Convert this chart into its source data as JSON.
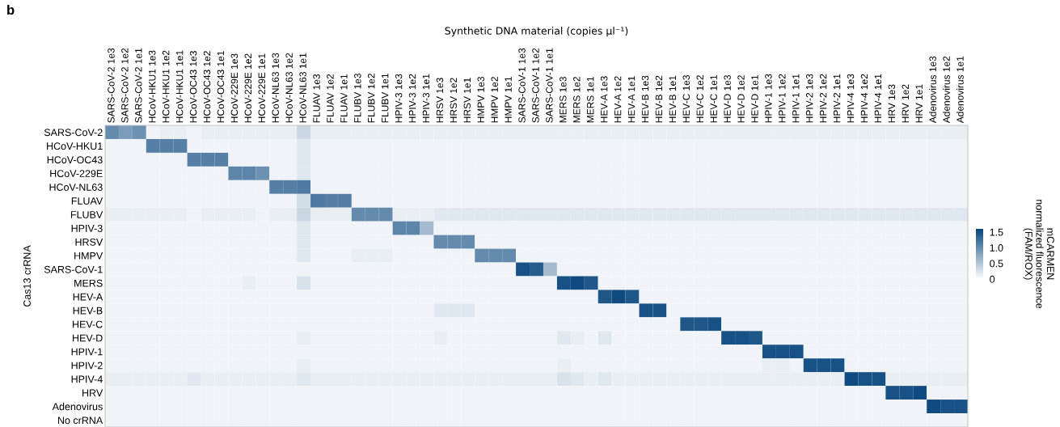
{
  "chart_data": {
    "type": "heatmap",
    "title": "b",
    "xlabel": "Synthetic DNA material (copies μl⁻¹)",
    "ylabel": "Cas13 crRNA",
    "clabel": "mCARMEN\nnormalized fluorescence\n(FAM/ROX)",
    "categories": [
      "SARS-CoV-2 1e3",
      "SARS-CoV-2 1e2",
      "SARS-CoV-2 1e1",
      "HCoV-HKU1 1e3",
      "HCoV-HKU1 1e2",
      "HCoV-HKU1 1e1",
      "HCoV-OC43 1e3",
      "HCoV-OC43 1e2",
      "HCoV-OC43 1e1",
      "HCoV-229E 1e3",
      "HCoV-229E 1e2",
      "HCoV-229E 1e1",
      "HCoV-NL63 1e3",
      "HCoV-NL63 1e2",
      "HCoV-NL63 1e1",
      "FLUAV 1e3",
      "FLUAV 1e2",
      "FLUAV 1e1",
      "FLUBV 1e3",
      "FLUBV 1e2",
      "FLUBV 1e1",
      "HPIV-3 1e3",
      "HPIV-3 1e2",
      "HPIV-3 1e1",
      "HRSV 1e3",
      "HRSV 1e2",
      "HRSV 1e1",
      "HMPV 1e3",
      "HMPV 1e2",
      "HMPV 1e1",
      "SARS-CoV-1 1e3",
      "SARS-CoV-1 1e2",
      "SARS-CoV-1 1e1",
      "MERS 1e3",
      "MERS 1e2",
      "MERS 1e1",
      "HEV-A 1e3",
      "HEV-A 1e2",
      "HEV-A 1e1",
      "HEV-B 1e3",
      "HEV-B 1e2",
      "HEV-B 1e1",
      "HEV-C 1e3",
      "HEV-C 1e2",
      "HEV-C 1e1",
      "HEV-D 1e3",
      "HEV-D 1e2",
      "HEV-D 1e1",
      "HPIV-1 1e3",
      "HPIV-1 1e2",
      "HPIV-1 1e1",
      "HPIV-2 1e3",
      "HPIV-2 1e2",
      "HPIV-2 1e1",
      "HPIV-4 1e3",
      "HPIV-4 1e2",
      "HPIV-4 1e1",
      "HRV 1e3",
      "HRV 1e2",
      "HRV 1e1",
      "Adenovirus 1e3",
      "Adenovirus 1e2",
      "Adenovirus 1e1"
    ],
    "y_categories": [
      "SARS-CoV-2",
      "HCoV-HKU1",
      "HCoV-OC43",
      "HCoV-229E",
      "HCoV-NL63",
      "FLUAV",
      "FLUBV",
      "HPIV-3",
      "HRSV",
      "HMPV",
      "SARS-CoV-1",
      "MERS",
      "HEV-A",
      "HEV-B",
      "HEV-C",
      "HEV-D",
      "HPIV-1",
      "HPIV-2",
      "HPIV-4",
      "HRV",
      "Adenovirus",
      "No crRNA"
    ],
    "cells": [
      [
        1.0,
        0.85,
        0.95,
        0.1,
        0.15,
        0.15,
        0.1,
        0.15,
        0.15,
        0.15,
        0.15,
        0.15,
        0.15,
        0.15,
        0.35,
        0.15,
        0.15,
        0.15,
        0.15,
        0.15,
        0.15,
        0.15,
        0.15,
        0.15,
        0.15,
        0.15,
        0.15,
        0.15,
        0.15,
        0.15,
        0.15,
        0.15,
        0.15,
        0.15,
        0.15,
        0.15,
        0.15,
        0.15,
        0.15,
        0.15,
        0.15,
        0.15,
        0.15,
        0.15,
        0.15,
        0.15,
        0.15,
        0.15,
        0.15,
        0.15,
        0.15,
        0.15,
        0.15,
        0.15,
        0.15,
        0.15,
        0.15,
        0.15,
        0.15,
        0.15,
        0.15,
        0.15,
        0.15
      ],
      [
        0.1,
        0.1,
        0.1,
        1.1,
        1.1,
        1.1,
        0.1,
        0.1,
        0.1,
        0.1,
        0.1,
        0.1,
        0.1,
        0.1,
        0.2,
        0.1,
        0.1,
        0.1,
        0.1,
        0.1,
        0.1,
        0.1,
        0.1,
        0.1,
        0.1,
        0.1,
        0.1,
        0.1,
        0.1,
        0.1,
        0.1,
        0.1,
        0.1,
        0.1,
        0.1,
        0.1,
        0.1,
        0.1,
        0.1,
        0.1,
        0.1,
        0.1,
        0.1,
        0.1,
        0.1,
        0.1,
        0.1,
        0.1,
        0.1,
        0.1,
        0.1,
        0.1,
        0.1,
        0.1,
        0.1,
        0.1,
        0.1,
        0.1,
        0.1,
        0.1,
        0.1,
        0.1,
        0.1
      ],
      [
        0.1,
        0.1,
        0.1,
        0.1,
        0.1,
        0.1,
        1.1,
        1.1,
        1.1,
        0.1,
        0.1,
        0.1,
        0.1,
        0.1,
        0.2,
        0.1,
        0.1,
        0.1,
        0.1,
        0.1,
        0.1,
        0.1,
        0.1,
        0.1,
        0.1,
        0.1,
        0.1,
        0.1,
        0.1,
        0.1,
        0.1,
        0.1,
        0.1,
        0.1,
        0.1,
        0.1,
        0.1,
        0.1,
        0.1,
        0.1,
        0.1,
        0.1,
        0.1,
        0.1,
        0.1,
        0.1,
        0.1,
        0.1,
        0.1,
        0.1,
        0.1,
        0.1,
        0.1,
        0.1,
        0.1,
        0.1,
        0.1,
        0.1,
        0.1,
        0.1,
        0.1,
        0.1,
        0.1
      ],
      [
        0.1,
        0.1,
        0.1,
        0.1,
        0.1,
        0.1,
        0.1,
        0.1,
        0.1,
        1.05,
        1.05,
        0.95,
        0.1,
        0.1,
        0.2,
        0.1,
        0.1,
        0.1,
        0.1,
        0.1,
        0.1,
        0.1,
        0.1,
        0.1,
        0.1,
        0.1,
        0.1,
        0.1,
        0.1,
        0.1,
        0.1,
        0.1,
        0.1,
        0.1,
        0.1,
        0.1,
        0.1,
        0.1,
        0.1,
        0.1,
        0.1,
        0.1,
        0.1,
        0.1,
        0.1,
        0.1,
        0.1,
        0.1,
        0.1,
        0.1,
        0.1,
        0.1,
        0.1,
        0.1,
        0.1,
        0.1,
        0.1,
        0.1,
        0.1,
        0.1,
        0.1,
        0.1,
        0.1
      ],
      [
        0.1,
        0.1,
        0.1,
        0.1,
        0.1,
        0.1,
        0.1,
        0.1,
        0.1,
        0.1,
        0.1,
        0.1,
        1.1,
        1.1,
        1.15,
        0.1,
        0.1,
        0.1,
        0.1,
        0.1,
        0.1,
        0.1,
        0.1,
        0.1,
        0.1,
        0.1,
        0.1,
        0.1,
        0.1,
        0.1,
        0.1,
        0.1,
        0.1,
        0.1,
        0.1,
        0.1,
        0.1,
        0.1,
        0.1,
        0.1,
        0.1,
        0.1,
        0.1,
        0.1,
        0.1,
        0.1,
        0.1,
        0.1,
        0.1,
        0.1,
        0.1,
        0.1,
        0.1,
        0.1,
        0.1,
        0.1,
        0.1,
        0.1,
        0.1,
        0.1,
        0.1,
        0.1,
        0.1
      ],
      [
        0.1,
        0.1,
        0.1,
        0.1,
        0.1,
        0.1,
        0.1,
        0.1,
        0.1,
        0.1,
        0.1,
        0.1,
        0.1,
        0.1,
        0.3,
        1.15,
        1.1,
        1.1,
        0.1,
        0.1,
        0.1,
        0.1,
        0.1,
        0.1,
        0.1,
        0.1,
        0.1,
        0.1,
        0.1,
        0.1,
        0.1,
        0.1,
        0.1,
        0.1,
        0.1,
        0.1,
        0.1,
        0.1,
        0.1,
        0.1,
        0.1,
        0.1,
        0.1,
        0.1,
        0.1,
        0.1,
        0.1,
        0.1,
        0.1,
        0.1,
        0.1,
        0.1,
        0.1,
        0.1,
        0.1,
        0.1,
        0.1,
        0.1,
        0.1,
        0.1,
        0.1,
        0.1,
        0.1
      ],
      [
        0.15,
        0.15,
        0.15,
        0.15,
        0.15,
        0.15,
        0.1,
        0.15,
        0.15,
        0.15,
        0.15,
        0.1,
        0.15,
        0.15,
        0.35,
        0.15,
        0.15,
        0.15,
        1.0,
        1.0,
        1.0,
        0.15,
        0.15,
        0.15,
        0.2,
        0.2,
        0.2,
        0.2,
        0.2,
        0.2,
        0.2,
        0.2,
        0.2,
        0.2,
        0.2,
        0.2,
        0.2,
        0.2,
        0.2,
        0.2,
        0.2,
        0.2,
        0.2,
        0.2,
        0.2,
        0.2,
        0.2,
        0.2,
        0.2,
        0.2,
        0.2,
        0.2,
        0.2,
        0.2,
        0.2,
        0.2,
        0.2,
        0.2,
        0.2,
        0.2,
        0.2,
        0.2,
        0.2
      ],
      [
        0.1,
        0.1,
        0.1,
        0.1,
        0.1,
        0.1,
        0.1,
        0.1,
        0.1,
        0.1,
        0.1,
        0.1,
        0.1,
        0.1,
        0.2,
        0.1,
        0.1,
        0.1,
        0.1,
        0.1,
        0.1,
        1.05,
        1.05,
        0.6,
        0.1,
        0.1,
        0.1,
        0.1,
        0.1,
        0.1,
        0.1,
        0.1,
        0.1,
        0.1,
        0.1,
        0.1,
        0.1,
        0.1,
        0.1,
        0.1,
        0.1,
        0.1,
        0.1,
        0.1,
        0.1,
        0.1,
        0.1,
        0.1,
        0.1,
        0.1,
        0.1,
        0.1,
        0.1,
        0.1,
        0.1,
        0.1,
        0.1,
        0.1,
        0.1,
        0.1,
        0.1,
        0.1,
        0.1
      ],
      [
        0.1,
        0.1,
        0.1,
        0.1,
        0.1,
        0.1,
        0.1,
        0.1,
        0.1,
        0.1,
        0.1,
        0.1,
        0.1,
        0.1,
        0.2,
        0.1,
        0.1,
        0.1,
        0.1,
        0.1,
        0.1,
        0.1,
        0.1,
        0.1,
        1.0,
        1.0,
        1.0,
        0.1,
        0.1,
        0.1,
        0.1,
        0.1,
        0.1,
        0.1,
        0.1,
        0.1,
        0.1,
        0.1,
        0.1,
        0.1,
        0.1,
        0.1,
        0.1,
        0.1,
        0.1,
        0.1,
        0.1,
        0.1,
        0.1,
        0.1,
        0.1,
        0.1,
        0.1,
        0.1,
        0.1,
        0.1,
        0.1,
        0.1,
        0.1,
        0.1,
        0.1,
        0.1,
        0.1
      ],
      [
        0.1,
        0.1,
        0.1,
        0.1,
        0.1,
        0.1,
        0.1,
        0.1,
        0.1,
        0.1,
        0.1,
        0.1,
        0.1,
        0.1,
        0.2,
        0.1,
        0.1,
        0.1,
        0.15,
        0.15,
        0.15,
        0.1,
        0.1,
        0.1,
        0.1,
        0.1,
        0.1,
        1.0,
        1.0,
        1.0,
        0.1,
        0.1,
        0.1,
        0.1,
        0.1,
        0.1,
        0.1,
        0.1,
        0.1,
        0.1,
        0.1,
        0.1,
        0.1,
        0.1,
        0.1,
        0.1,
        0.1,
        0.1,
        0.1,
        0.1,
        0.1,
        0.1,
        0.1,
        0.1,
        0.1,
        0.1,
        0.1,
        0.1,
        0.1,
        0.1,
        0.1,
        0.1,
        0.1
      ],
      [
        0.1,
        0.1,
        0.1,
        0.1,
        0.1,
        0.1,
        0.1,
        0.1,
        0.1,
        0.1,
        0.1,
        0.1,
        0.1,
        0.1,
        0.1,
        0.1,
        0.1,
        0.1,
        0.1,
        0.1,
        0.1,
        0.1,
        0.1,
        0.1,
        0.1,
        0.1,
        0.1,
        0.1,
        0.1,
        0.1,
        1.5,
        1.4,
        0.6,
        0.1,
        0.1,
        0.1,
        0.1,
        0.1,
        0.1,
        0.1,
        0.1,
        0.1,
        0.1,
        0.1,
        0.1,
        0.1,
        0.1,
        0.1,
        0.1,
        0.1,
        0.1,
        0.1,
        0.1,
        0.1,
        0.1,
        0.1,
        0.1,
        0.1,
        0.1,
        0.1,
        0.1,
        0.1,
        0.1
      ],
      [
        0.1,
        0.1,
        0.1,
        0.1,
        0.1,
        0.1,
        0.1,
        0.1,
        0.1,
        0.1,
        0.15,
        0.1,
        0.1,
        0.1,
        0.25,
        0.1,
        0.1,
        0.1,
        0.1,
        0.1,
        0.1,
        0.1,
        0.1,
        0.1,
        0.1,
        0.1,
        0.1,
        0.1,
        0.1,
        0.1,
        0.1,
        0.1,
        0.1,
        1.5,
        1.55,
        1.45,
        0.1,
        0.1,
        0.1,
        0.1,
        0.1,
        0.1,
        0.1,
        0.1,
        0.1,
        0.1,
        0.1,
        0.1,
        0.1,
        0.1,
        0.1,
        0.1,
        0.1,
        0.1,
        0.1,
        0.1,
        0.1,
        0.1,
        0.1,
        0.1,
        0.1,
        0.1,
        0.1
      ],
      [
        0.1,
        0.1,
        0.1,
        0.1,
        0.1,
        0.1,
        0.1,
        0.1,
        0.1,
        0.1,
        0.1,
        0.1,
        0.1,
        0.1,
        0.1,
        0.1,
        0.1,
        0.1,
        0.1,
        0.1,
        0.1,
        0.1,
        0.1,
        0.1,
        0.1,
        0.1,
        0.1,
        0.1,
        0.1,
        0.1,
        0.1,
        0.1,
        0.1,
        0.1,
        0.1,
        0.1,
        1.45,
        1.55,
        1.45,
        0.1,
        0.1,
        0.1,
        0.1,
        0.1,
        0.1,
        0.1,
        0.1,
        0.1,
        0.1,
        0.1,
        0.1,
        0.1,
        0.1,
        0.1,
        0.1,
        0.1,
        0.1,
        0.1,
        0.1,
        0.1,
        0.1,
        0.1,
        0.1
      ],
      [
        0.1,
        0.1,
        0.1,
        0.1,
        0.1,
        0.1,
        0.1,
        0.1,
        0.1,
        0.1,
        0.1,
        0.1,
        0.1,
        0.1,
        0.1,
        0.1,
        0.1,
        0.1,
        0.1,
        0.1,
        0.1,
        0.1,
        0.1,
        0.1,
        0.2,
        0.2,
        0.2,
        0.1,
        0.1,
        0.1,
        0.1,
        0.1,
        0.1,
        0.1,
        0.1,
        0.1,
        0.1,
        0.1,
        0.1,
        1.5,
        1.5,
        0.1,
        0.1,
        0.1,
        0.1,
        0.1,
        0.1,
        0.1,
        0.1,
        0.1,
        0.1,
        0.1,
        0.1,
        0.1,
        0.1,
        0.1,
        0.1,
        0.1,
        0.1,
        0.1,
        0.1,
        0.1,
        0.1
      ],
      [
        0.1,
        0.1,
        0.1,
        0.1,
        0.1,
        0.1,
        0.1,
        0.1,
        0.1,
        0.1,
        0.1,
        0.1,
        0.1,
        0.1,
        0.1,
        0.1,
        0.1,
        0.1,
        0.1,
        0.1,
        0.1,
        0.1,
        0.1,
        0.1,
        0.1,
        0.1,
        0.1,
        0.1,
        0.1,
        0.1,
        0.1,
        0.1,
        0.1,
        0.1,
        0.1,
        0.1,
        0.1,
        0.1,
        0.1,
        0.1,
        0.1,
        0.1,
        1.45,
        1.45,
        1.5,
        0.1,
        0.1,
        0.1,
        0.1,
        0.1,
        0.1,
        0.1,
        0.1,
        0.1,
        0.1,
        0.1,
        0.1,
        0.1,
        0.1,
        0.1,
        0.1,
        0.1,
        0.1
      ],
      [
        0.1,
        0.1,
        0.1,
        0.1,
        0.1,
        0.1,
        0.1,
        0.1,
        0.1,
        0.1,
        0.1,
        0.1,
        0.1,
        0.1,
        0.15,
        0.1,
        0.1,
        0.1,
        0.1,
        0.1,
        0.1,
        0.1,
        0.1,
        0.1,
        0.15,
        0.1,
        0.1,
        0.1,
        0.1,
        0.1,
        0.1,
        0.1,
        0.1,
        0.2,
        0.15,
        0.1,
        0.2,
        0.1,
        0.1,
        0.1,
        0.1,
        0.1,
        0.1,
        0.1,
        0.1,
        1.5,
        1.5,
        1.45,
        0.1,
        0.1,
        0.1,
        0.1,
        0.1,
        0.1,
        0.1,
        0.1,
        0.1,
        0.1,
        0.1,
        0.1,
        0.1,
        0.1,
        0.1
      ],
      [
        0.1,
        0.1,
        0.1,
        0.1,
        0.1,
        0.1,
        0.1,
        0.1,
        0.1,
        0.1,
        0.1,
        0.1,
        0.1,
        0.1,
        0.1,
        0.1,
        0.1,
        0.1,
        0.1,
        0.1,
        0.1,
        0.1,
        0.1,
        0.1,
        0.1,
        0.1,
        0.1,
        0.1,
        0.1,
        0.1,
        0.1,
        0.1,
        0.1,
        0.1,
        0.1,
        0.1,
        0.1,
        0.1,
        0.1,
        0.1,
        0.1,
        0.1,
        0.1,
        0.1,
        0.1,
        0.1,
        0.1,
        0.1,
        1.5,
        1.5,
        1.5,
        0.1,
        0.1,
        0.1,
        0.1,
        0.1,
        0.1,
        0.1,
        0.1,
        0.1,
        0.1,
        0.1,
        0.1
      ],
      [
        0.1,
        0.1,
        0.1,
        0.1,
        0.1,
        0.1,
        0.1,
        0.1,
        0.1,
        0.1,
        0.1,
        0.1,
        0.1,
        0.1,
        0.15,
        0.1,
        0.1,
        0.1,
        0.1,
        0.1,
        0.1,
        0.1,
        0.1,
        0.1,
        0.1,
        0.1,
        0.1,
        0.1,
        0.1,
        0.1,
        0.1,
        0.1,
        0.1,
        0.15,
        0.1,
        0.1,
        0.1,
        0.1,
        0.1,
        0.1,
        0.1,
        0.1,
        0.1,
        0.1,
        0.1,
        0.1,
        0.1,
        0.1,
        0.15,
        0.15,
        0.1,
        1.5,
        1.5,
        1.5,
        0.1,
        0.1,
        0.1,
        0.1,
        0.1,
        0.1,
        0.1,
        0.1,
        0.1
      ],
      [
        0.15,
        0.15,
        0.15,
        0.15,
        0.15,
        0.15,
        0.2,
        0.15,
        0.15,
        0.15,
        0.15,
        0.15,
        0.15,
        0.15,
        0.2,
        0.15,
        0.15,
        0.15,
        0.15,
        0.15,
        0.15,
        0.15,
        0.15,
        0.15,
        0.15,
        0.15,
        0.15,
        0.15,
        0.15,
        0.15,
        0.15,
        0.15,
        0.15,
        0.25,
        0.2,
        0.15,
        0.2,
        0.15,
        0.15,
        0.15,
        0.15,
        0.15,
        0.15,
        0.15,
        0.15,
        0.15,
        0.15,
        0.15,
        0.15,
        0.15,
        0.15,
        0.15,
        0.15,
        0.15,
        1.55,
        1.5,
        1.5,
        0.15,
        0.15,
        0.15,
        0.15,
        0.15,
        0.15
      ],
      [
        0.1,
        0.1,
        0.1,
        0.1,
        0.1,
        0.1,
        0.1,
        0.1,
        0.1,
        0.1,
        0.1,
        0.1,
        0.1,
        0.1,
        0.1,
        0.1,
        0.1,
        0.1,
        0.1,
        0.1,
        0.1,
        0.1,
        0.1,
        0.1,
        0.1,
        0.1,
        0.1,
        0.1,
        0.1,
        0.1,
        0.1,
        0.1,
        0.1,
        0.1,
        0.1,
        0.1,
        0.1,
        0.1,
        0.1,
        0.1,
        0.1,
        0.1,
        0.1,
        0.1,
        0.1,
        0.1,
        0.1,
        0.1,
        0.1,
        0.1,
        0.1,
        0.1,
        0.1,
        0.1,
        0.1,
        0.1,
        0.1,
        1.5,
        1.5,
        1.55,
        0.1,
        0.1,
        0.1
      ],
      [
        0.1,
        0.1,
        0.1,
        0.1,
        0.1,
        0.1,
        0.1,
        0.1,
        0.1,
        0.1,
        0.1,
        0.1,
        0.1,
        0.1,
        0.1,
        0.1,
        0.1,
        0.1,
        0.1,
        0.1,
        0.1,
        0.1,
        0.1,
        0.1,
        0.1,
        0.1,
        0.1,
        0.1,
        0.1,
        0.1,
        0.1,
        0.1,
        0.1,
        0.1,
        0.1,
        0.1,
        0.1,
        0.1,
        0.1,
        0.1,
        0.1,
        0.1,
        0.1,
        0.1,
        0.1,
        0.1,
        0.1,
        0.1,
        0.1,
        0.1,
        0.1,
        0.1,
        0.1,
        0.1,
        0.1,
        0.1,
        0.1,
        0.1,
        0.1,
        0.1,
        1.55,
        1.5,
        1.5
      ],
      [
        0.1,
        0.1,
        0.1,
        0.1,
        0.1,
        0.1,
        0.1,
        0.1,
        0.1,
        0.1,
        0.1,
        0.1,
        0.1,
        0.1,
        0.1,
        0.1,
        0.1,
        0.1,
        0.1,
        0.1,
        0.1,
        0.1,
        0.1,
        0.1,
        0.1,
        0.1,
        0.1,
        0.1,
        0.1,
        0.1,
        0.1,
        0.1,
        0.1,
        0.1,
        0.1,
        0.1,
        0.1,
        0.1,
        0.1,
        0.1,
        0.1,
        0.1,
        0.1,
        0.1,
        0.1,
        0.1,
        0.1,
        0.1,
        0.1,
        0.1,
        0.1,
        0.1,
        0.1,
        0.1,
        0.1,
        0.1,
        0.1,
        0.1,
        0.1,
        0.1,
        0.1,
        0.1,
        0.1
      ]
    ],
    "clim": [
      0,
      1.6
    ],
    "cticks": [
      0,
      0.5,
      {
        "value": 1,
        "label": "1.0"
      },
      1.5
    ]
  }
}
